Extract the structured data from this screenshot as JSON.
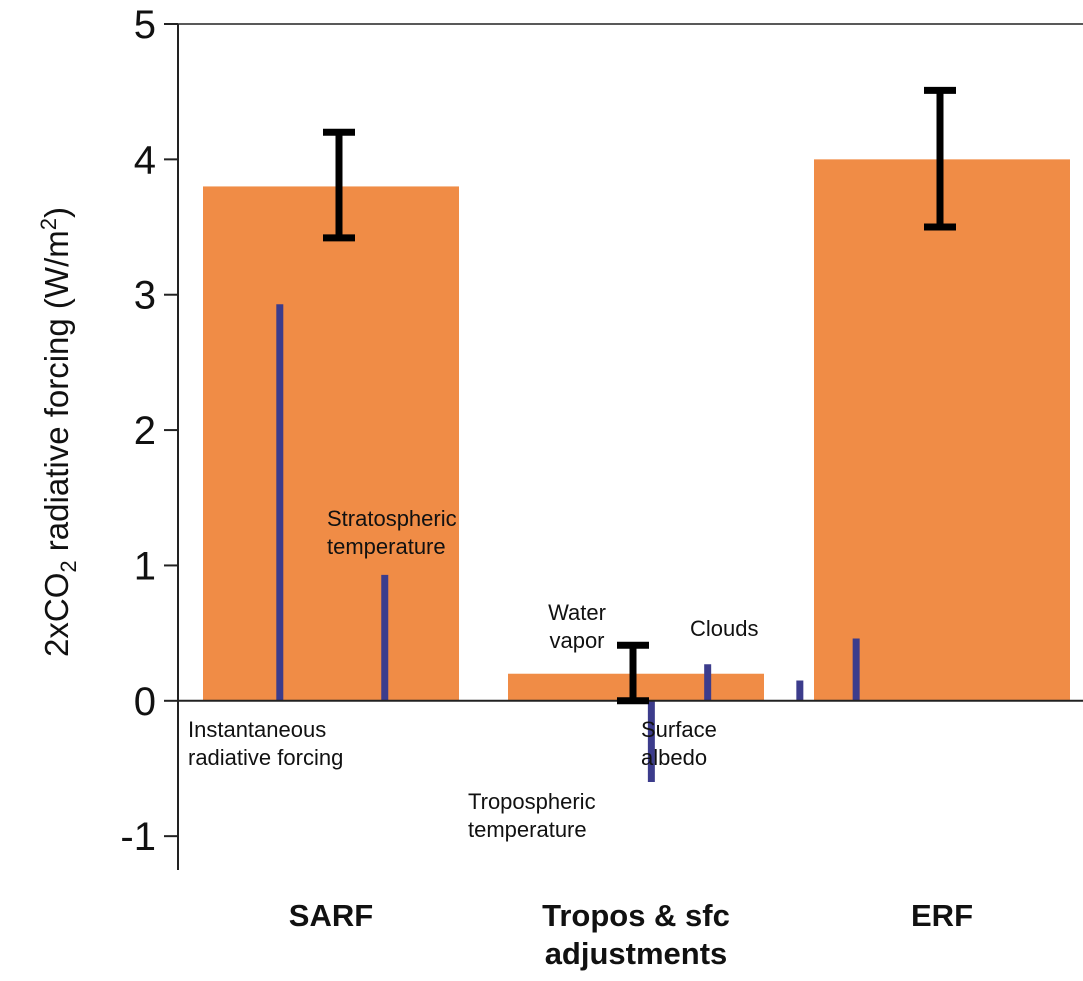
{
  "chart_data": {
    "type": "bar",
    "ylabel": {
      "prefix": "2xCO",
      "sub": "2",
      "mid": " radiative forcing (W/m",
      "sup": "2",
      "suffix": ")"
    },
    "ylim": [
      -1.25,
      5
    ],
    "yticks": [
      -1,
      0,
      1,
      2,
      3,
      4,
      5
    ],
    "ytick_labels": [
      "-1",
      "0",
      "1",
      "2",
      "3",
      "4",
      "5"
    ],
    "grid": false,
    "categories": [
      {
        "lines": [
          "SARF"
        ]
      },
      {
        "lines": [
          "Tropos & sfc",
          "adjustments"
        ]
      },
      {
        "lines": [
          "ERF"
        ]
      }
    ],
    "bars": [
      {
        "category": "SARF",
        "value": 3.8,
        "error_low": 3.42,
        "error_high": 4.2,
        "color": "#f08c46"
      },
      {
        "category": "Tropos & sfc adjustments",
        "value": 0.2,
        "error_low": 0.0,
        "error_high": 0.41,
        "color": "#f08c46"
      },
      {
        "category": "ERF",
        "value": 4.0,
        "error_low": 3.5,
        "error_high": 4.51,
        "color": "#f08c46"
      }
    ],
    "components": [
      {
        "category": 0,
        "offset": -0.2,
        "value": 2.93,
        "lines": [
          "Instantaneous",
          "radiative forcing"
        ]
      },
      {
        "category": 0,
        "offset": 0.21,
        "value": 0.93,
        "lines": [
          "Stratospheric",
          "temperature"
        ]
      },
      {
        "category": 1,
        "offset": 0.06,
        "value": -0.6,
        "lines": [
          "Tropospheric",
          "temperature"
        ]
      },
      {
        "category": 1,
        "offset": 0.28,
        "value": 0.27,
        "lines": [
          "Water",
          "vapor"
        ]
      },
      {
        "category": 1,
        "offset": 0.64,
        "value": 0.15,
        "lines": [
          "Surface",
          "albedo"
        ]
      },
      {
        "category": 1,
        "offset": 0.86,
        "value": 0.46,
        "lines": [
          "Clouds"
        ]
      }
    ],
    "bar_color": "#f08c46",
    "component_color": "#3c3c8c",
    "errorbar_color": "#000000"
  }
}
